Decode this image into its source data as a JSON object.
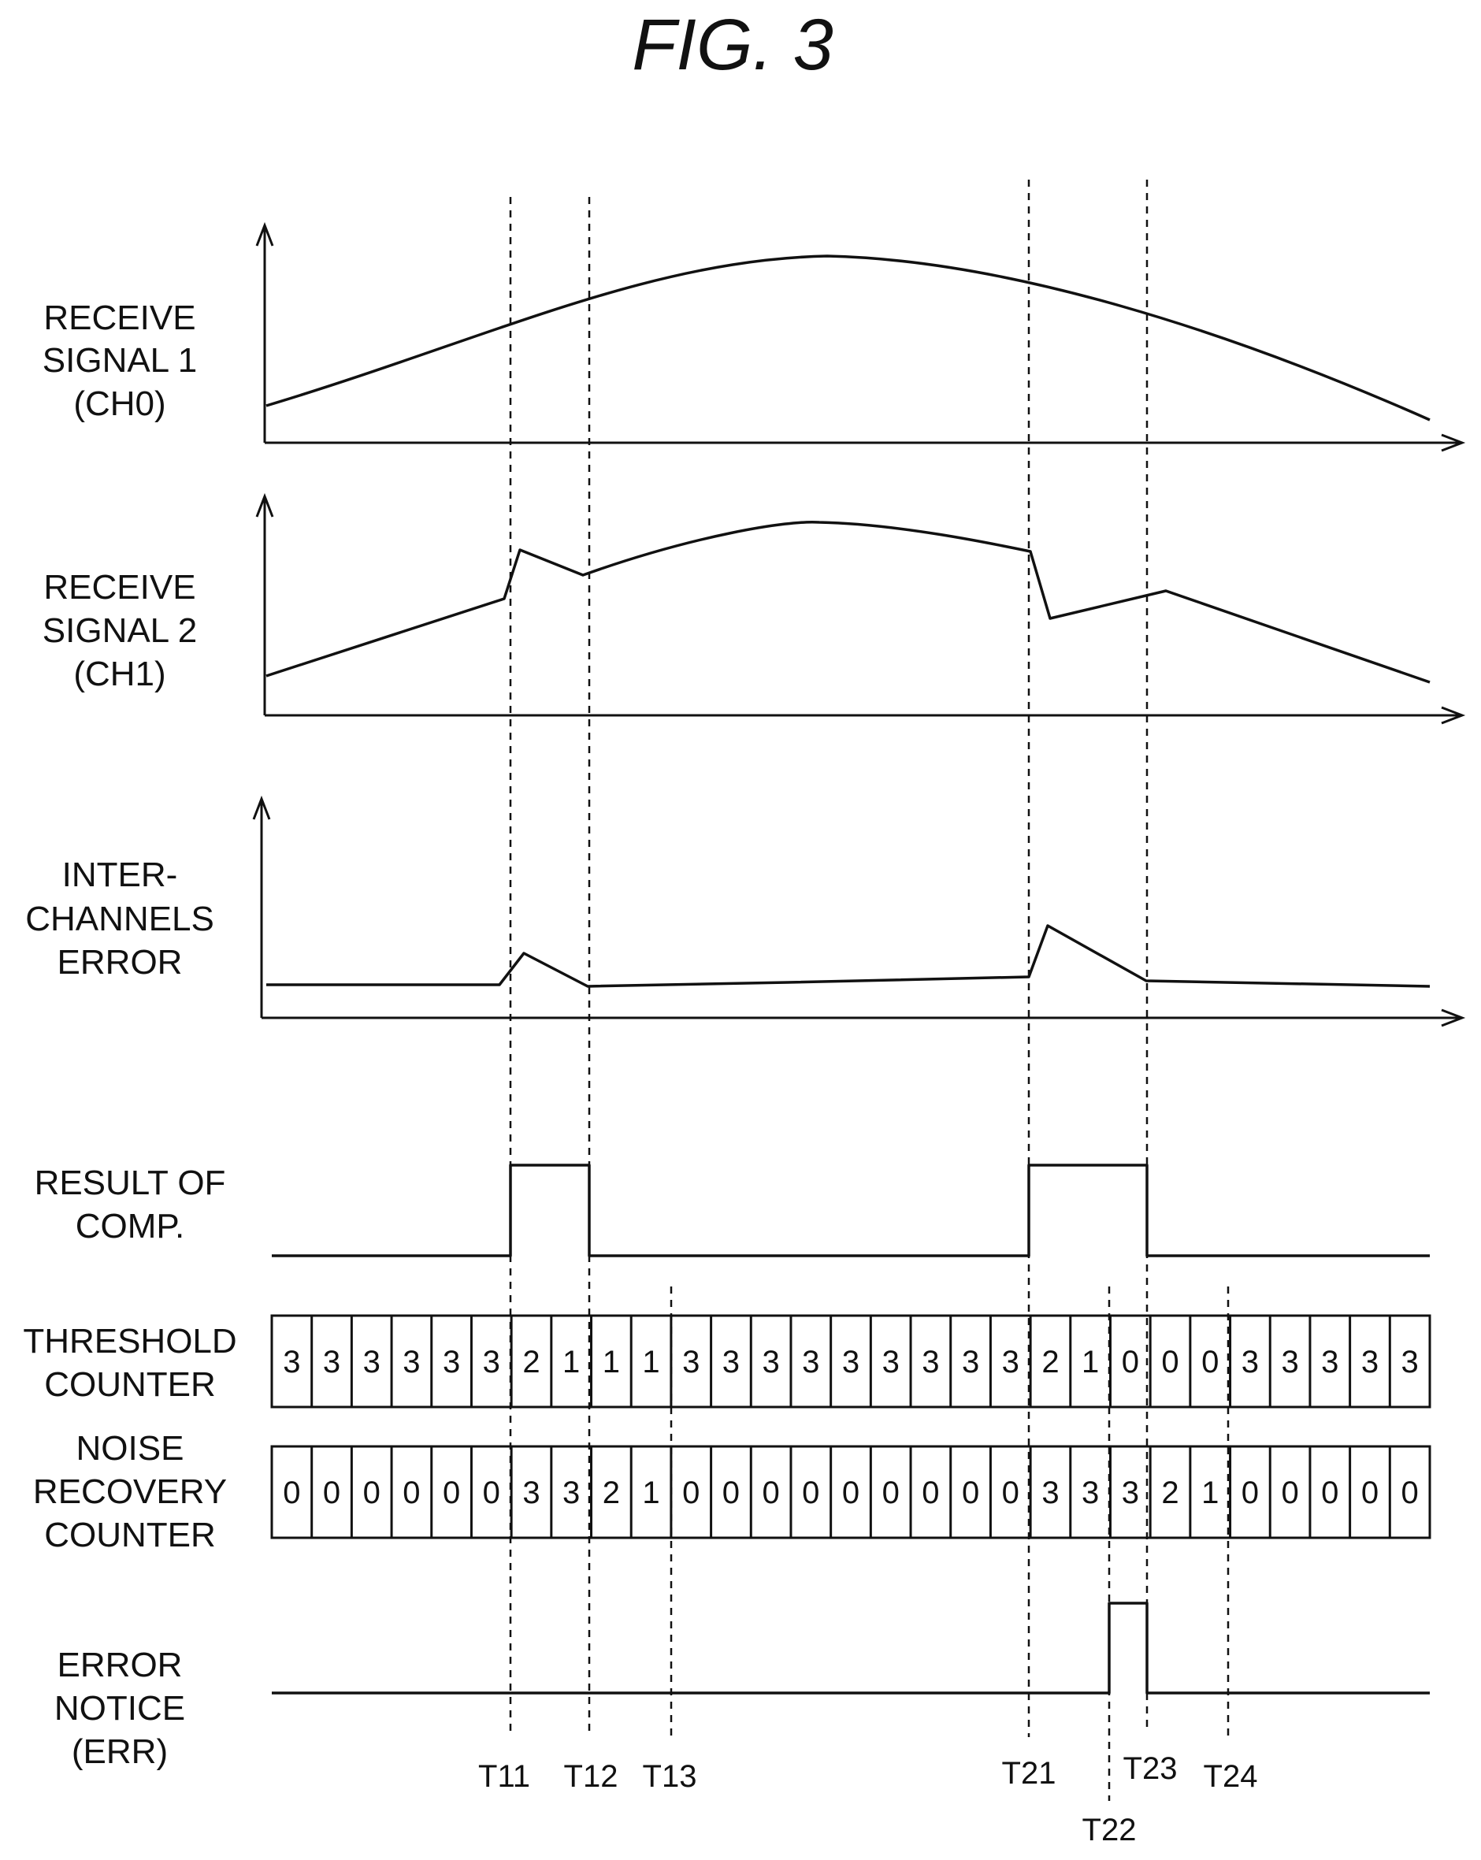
{
  "figure": {
    "title": "FIG.  3"
  },
  "rows": {
    "receive_signal_1": [
      "RECEIVE",
      "SIGNAL 1",
      "(CH0)"
    ],
    "receive_signal_2": [
      "RECEIVE",
      "SIGNAL 2",
      "(CH1)"
    ],
    "inter_channels_error": [
      "INTER-",
      "CHANNELS",
      "ERROR"
    ],
    "result_of_comp": [
      "RESULT OF",
      "COMP."
    ],
    "threshold_counter": [
      "THRESHOLD",
      "COUNTER"
    ],
    "noise_recovery_counter": [
      "NOISE",
      "RECOVERY",
      "COUNTER"
    ],
    "error_notice": [
      "ERROR",
      "NOTICE",
      "(ERR)"
    ]
  },
  "counters": {
    "threshold": [
      3,
      3,
      3,
      3,
      3,
      3,
      2,
      1,
      1,
      1,
      3,
      3,
      3,
      3,
      3,
      3,
      3,
      3,
      3,
      2,
      1,
      0,
      0,
      0,
      3,
      3,
      3,
      3,
      3
    ],
    "noise_recovery": [
      0,
      0,
      0,
      0,
      0,
      0,
      3,
      3,
      2,
      1,
      0,
      0,
      0,
      0,
      0,
      0,
      0,
      0,
      0,
      3,
      3,
      3,
      2,
      1,
      0,
      0,
      0,
      0,
      0
    ]
  },
  "timing_markers": [
    {
      "id": "T11",
      "label": "T11"
    },
    {
      "id": "T12",
      "label": "T12"
    },
    {
      "id": "T13",
      "label": "T13"
    },
    {
      "id": "T21",
      "label": "T21"
    },
    {
      "id": "T22",
      "label": "T22"
    },
    {
      "id": "T23",
      "label": "T23"
    },
    {
      "id": "T24",
      "label": "T24"
    }
  ]
}
